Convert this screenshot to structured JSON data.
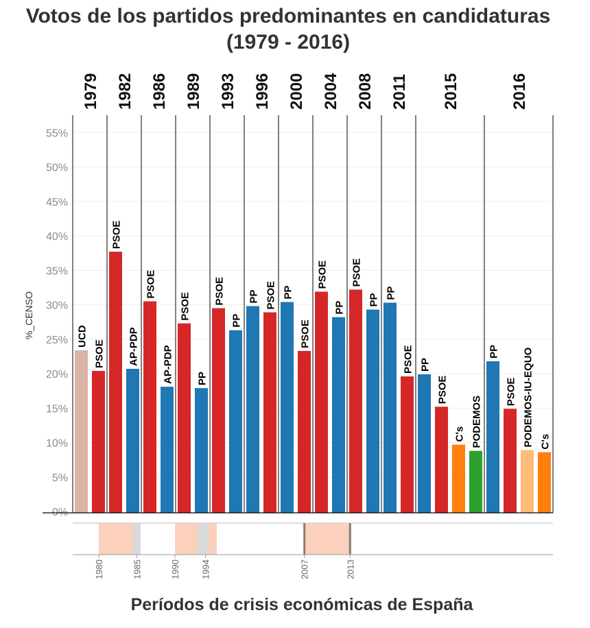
{
  "chart_data": {
    "type": "bar",
    "title_line1": "Votos de los partidos predominantes en candidaturas",
    "title_line2": "(1979 - 2016)",
    "ylabel": "%_CENSO",
    "xlabel": "Períodos de crisis económicas de España",
    "ylim": [
      0,
      58
    ],
    "yticks": [
      0,
      5,
      10,
      15,
      20,
      25,
      30,
      35,
      40,
      45,
      50,
      55
    ],
    "ytick_labels": [
      "0%",
      "5%",
      "10%",
      "15%",
      "20%",
      "25%",
      "30%",
      "35%",
      "40%",
      "45%",
      "50%",
      "55%"
    ],
    "grid": true,
    "colors": {
      "UCD": "#d9b3a6",
      "PSOE": "#d62728",
      "AP-PDP": "#1f77b4",
      "PP": "#1f77b4",
      "C's": "#ff7f0e",
      "PODEMOS": "#2ca02c",
      "PODEMOS-IU-EQUO": "#ffbb78"
    },
    "elections": [
      {
        "year": "1979",
        "bars": [
          {
            "party": "UCD",
            "value": 23.4
          },
          {
            "party": "PSOE",
            "value": 20.4
          }
        ]
      },
      {
        "year": "1982",
        "bars": [
          {
            "party": "PSOE",
            "value": 37.7
          },
          {
            "party": "AP-PDP",
            "value": 20.7
          }
        ]
      },
      {
        "year": "1986",
        "bars": [
          {
            "party": "PSOE",
            "value": 30.5
          },
          {
            "party": "AP-PDP",
            "value": 18.1
          }
        ]
      },
      {
        "year": "1989",
        "bars": [
          {
            "party": "PSOE",
            "value": 27.3
          },
          {
            "party": "PP",
            "value": 17.9
          }
        ]
      },
      {
        "year": "1993",
        "bars": [
          {
            "party": "PSOE",
            "value": 29.5
          },
          {
            "party": "PP",
            "value": 26.3
          }
        ]
      },
      {
        "year": "1996",
        "bars": [
          {
            "party": "PP",
            "value": 29.8
          },
          {
            "party": "PSOE",
            "value": 28.9
          }
        ]
      },
      {
        "year": "2000",
        "bars": [
          {
            "party": "PP",
            "value": 30.4
          },
          {
            "party": "PSOE",
            "value": 23.3
          }
        ]
      },
      {
        "year": "2004",
        "bars": [
          {
            "party": "PSOE",
            "value": 31.9
          },
          {
            "party": "PP",
            "value": 28.2
          }
        ]
      },
      {
        "year": "2008",
        "bars": [
          {
            "party": "PSOE",
            "value": 32.2
          },
          {
            "party": "PP",
            "value": 29.3
          }
        ]
      },
      {
        "year": "2011",
        "bars": [
          {
            "party": "PP",
            "value": 30.3
          },
          {
            "party": "PSOE",
            "value": 19.6
          }
        ]
      },
      {
        "year": "2015",
        "bars": [
          {
            "party": "PP",
            "value": 19.9
          },
          {
            "party": "PSOE",
            "value": 15.2
          },
          {
            "party": "C's",
            "value": 9.7
          },
          {
            "party": "PODEMOS",
            "value": 8.8
          }
        ]
      },
      {
        "year": "2016",
        "bars": [
          {
            "party": "PP",
            "value": 21.8
          },
          {
            "party": "PSOE",
            "value": 14.9
          },
          {
            "party": "PODEMOS-IU-EQUO",
            "value": 8.9
          },
          {
            "party": "C's",
            "value": 8.6
          }
        ]
      }
    ],
    "crisis_periods": [
      {
        "start": 1980,
        "end": 1984.5,
        "kind": "crisis",
        "color": "#fbd0bd"
      },
      {
        "start": 1984.5,
        "end": 1985.5,
        "kind": "transition",
        "color": "#d9d9d9"
      },
      {
        "start": 1990,
        "end": 1993,
        "kind": "crisis",
        "color": "#fbd0bd"
      },
      {
        "start": 1993,
        "end": 1994.4,
        "kind": "transition",
        "color": "#d9d9d9"
      },
      {
        "start": 1994.4,
        "end": 1995.5,
        "kind": "crisis",
        "color": "#fbd0bd"
      },
      {
        "start": 2007,
        "end": 2013,
        "kind": "crisis",
        "color": "#fbd0bd"
      }
    ],
    "crisis_ticks": [
      "1980",
      "1985",
      "1990",
      "1994",
      "2007",
      "2013"
    ]
  }
}
